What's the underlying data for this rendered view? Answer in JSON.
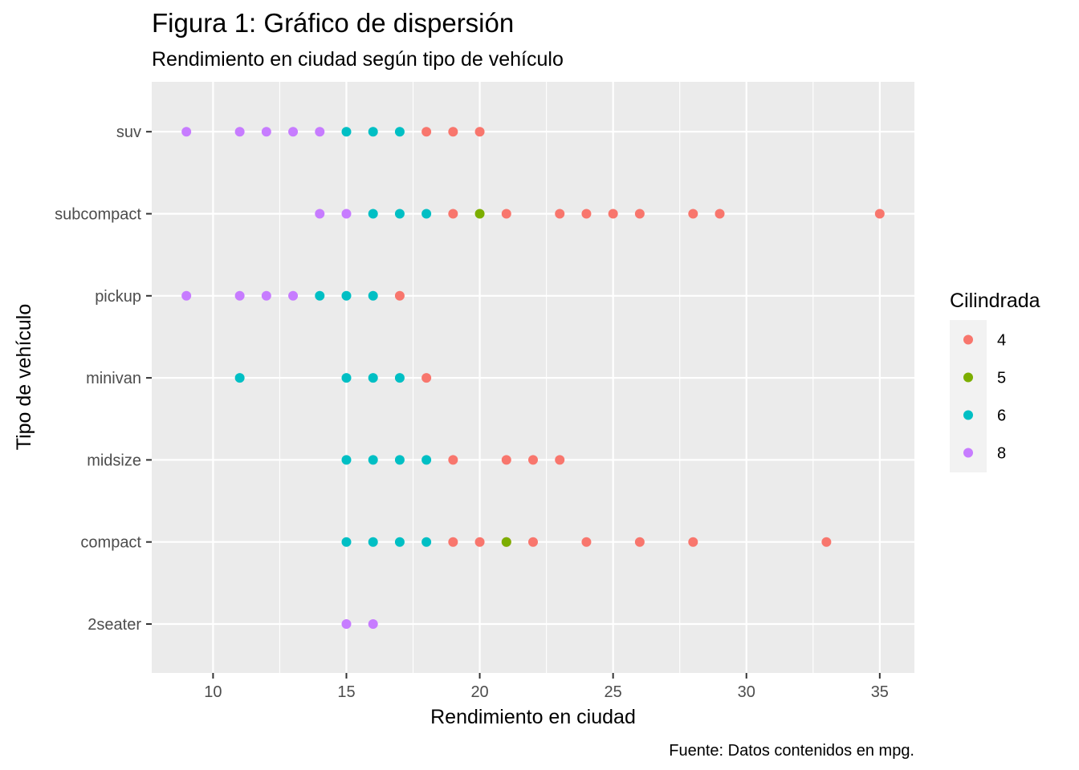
{
  "chart_data": {
    "type": "scatter",
    "title": "Figura 1: Gráfico de dispersión",
    "subtitle": "Rendimiento en ciudad según tipo de vehículo",
    "caption": "Fuente: Datos contenidos en mpg.",
    "xlabel": "Rendimiento en ciudad",
    "ylabel": "Tipo de vehículo",
    "xlim": [
      7.7,
      36.3
    ],
    "xticks": [
      10,
      15,
      20,
      25,
      30,
      35
    ],
    "categories": [
      "2seater",
      "compact",
      "midsize",
      "minivan",
      "pickup",
      "subcompact",
      "suv"
    ],
    "grid": true,
    "legend": {
      "title": "Cilindrada",
      "position": "right"
    },
    "series": [
      {
        "name": "4",
        "color": "#F8766D",
        "points": [
          [
            "suv",
            18
          ],
          [
            "suv",
            19
          ],
          [
            "suv",
            20
          ],
          [
            "subcompact",
            19
          ],
          [
            "subcompact",
            21
          ],
          [
            "subcompact",
            23
          ],
          [
            "subcompact",
            24
          ],
          [
            "subcompact",
            25
          ],
          [
            "subcompact",
            26
          ],
          [
            "subcompact",
            28
          ],
          [
            "subcompact",
            29
          ],
          [
            "subcompact",
            35
          ],
          [
            "pickup",
            17
          ],
          [
            "minivan",
            18
          ],
          [
            "midsize",
            19
          ],
          [
            "midsize",
            21
          ],
          [
            "midsize",
            22
          ],
          [
            "midsize",
            23
          ],
          [
            "compact",
            19
          ],
          [
            "compact",
            20
          ],
          [
            "compact",
            21
          ],
          [
            "compact",
            22
          ],
          [
            "compact",
            24
          ],
          [
            "compact",
            26
          ],
          [
            "compact",
            28
          ],
          [
            "compact",
            33
          ]
        ]
      },
      {
        "name": "5",
        "color": "#7CAE00",
        "points": [
          [
            "subcompact",
            20
          ],
          [
            "compact",
            21
          ]
        ]
      },
      {
        "name": "6",
        "color": "#00BFC4",
        "points": [
          [
            "suv",
            15
          ],
          [
            "suv",
            16
          ],
          [
            "suv",
            17
          ],
          [
            "subcompact",
            16
          ],
          [
            "subcompact",
            17
          ],
          [
            "subcompact",
            18
          ],
          [
            "pickup",
            14
          ],
          [
            "pickup",
            15
          ],
          [
            "pickup",
            16
          ],
          [
            "minivan",
            11
          ],
          [
            "minivan",
            15
          ],
          [
            "minivan",
            16
          ],
          [
            "minivan",
            17
          ],
          [
            "midsize",
            15
          ],
          [
            "midsize",
            16
          ],
          [
            "midsize",
            17
          ],
          [
            "midsize",
            18
          ],
          [
            "compact",
            15
          ],
          [
            "compact",
            16
          ],
          [
            "compact",
            17
          ],
          [
            "compact",
            18
          ]
        ]
      },
      {
        "name": "8",
        "color": "#C77CFF",
        "points": [
          [
            "suv",
            9
          ],
          [
            "suv",
            11
          ],
          [
            "suv",
            12
          ],
          [
            "suv",
            13
          ],
          [
            "suv",
            14
          ],
          [
            "subcompact",
            14
          ],
          [
            "subcompact",
            15
          ],
          [
            "pickup",
            9
          ],
          [
            "pickup",
            11
          ],
          [
            "pickup",
            12
          ],
          [
            "pickup",
            13
          ],
          [
            "2seater",
            15
          ],
          [
            "2seater",
            16
          ]
        ]
      }
    ]
  }
}
